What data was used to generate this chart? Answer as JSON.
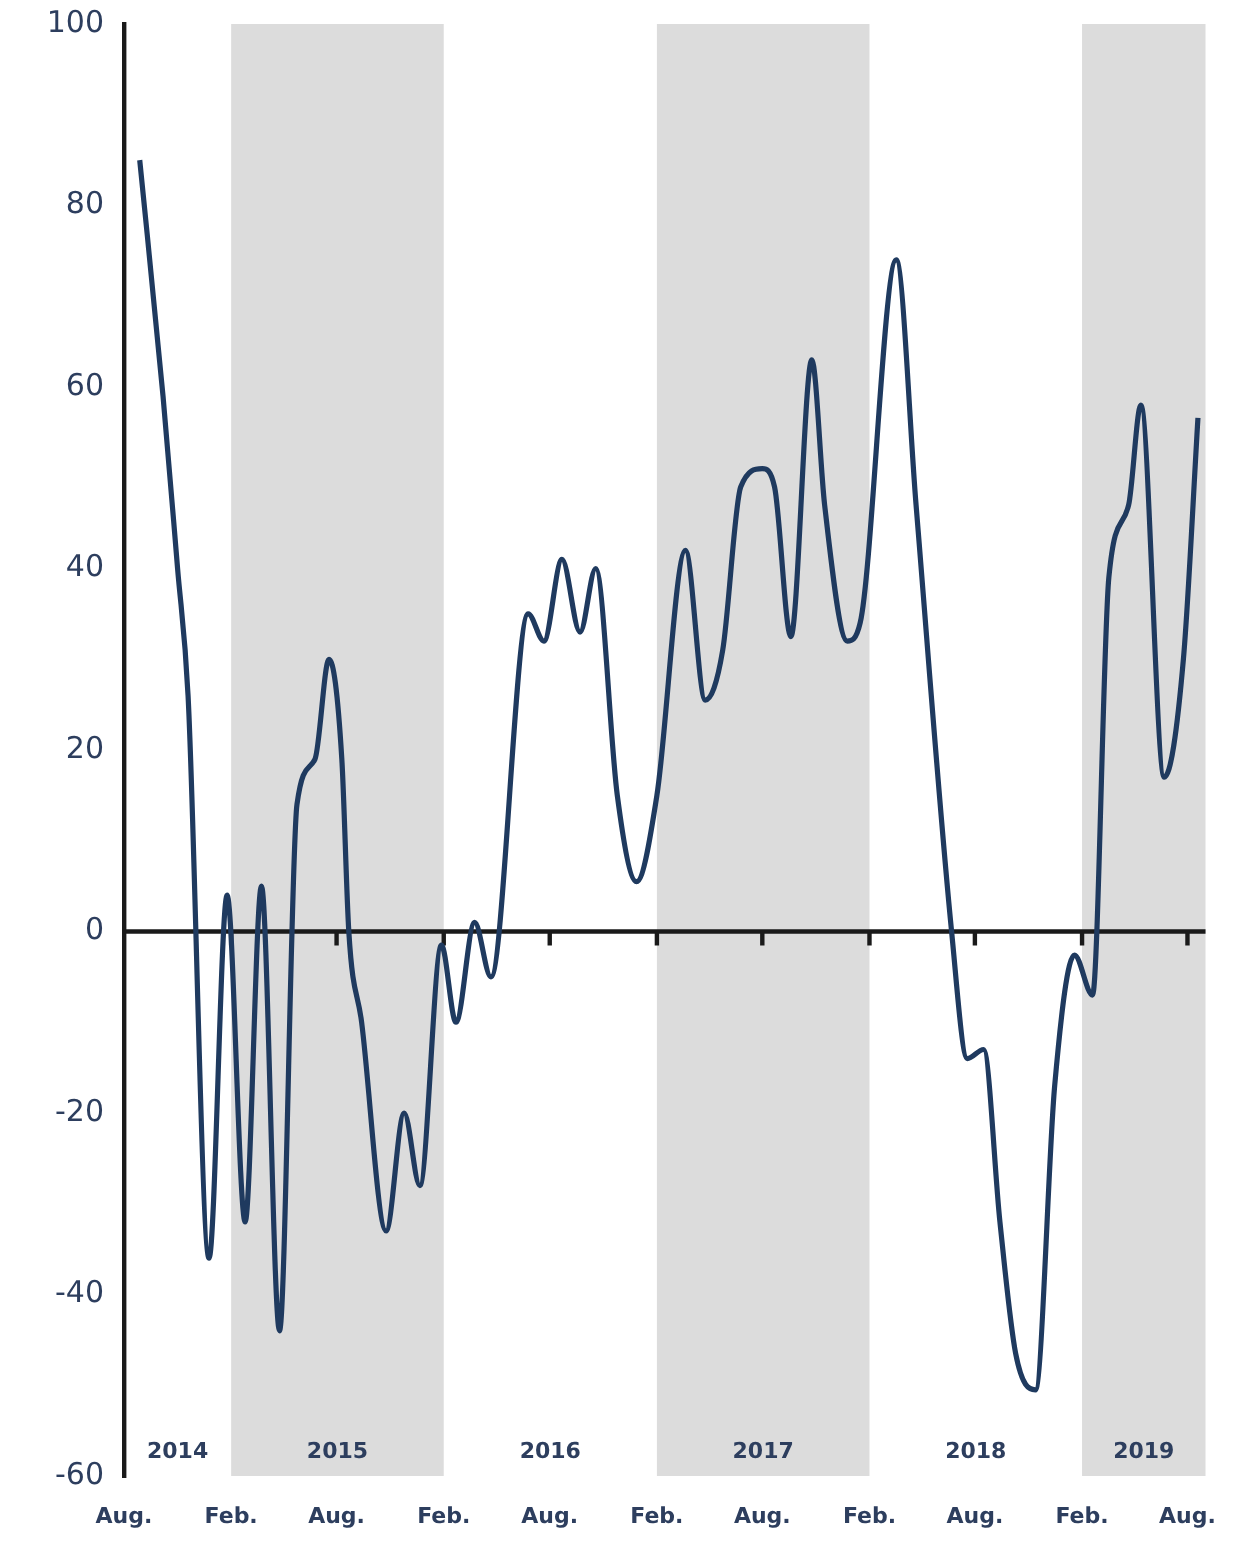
{
  "chart_data": {
    "type": "line",
    "x": [
      "2014-08-28",
      "2014-10-07",
      "2014-11-01",
      "2014-11-19",
      "2014-12-25",
      "2015-01-25",
      "2015-02-25",
      "2015-03-25",
      "2015-04-25",
      "2015-05-25",
      "2015-06-25",
      "2015-07-19",
      "2015-08-10",
      "2015-08-22",
      "2015-09-13",
      "2015-10-25",
      "2015-11-25",
      "2015-12-22",
      "2016-01-28",
      "2016-02-22",
      "2016-03-25",
      "2016-04-22",
      "2016-06-25",
      "2016-07-22",
      "2016-08-22",
      "2016-09-22",
      "2016-10-19",
      "2016-11-25",
      "2016-12-28",
      "2017-02-01",
      "2017-03-22",
      "2017-04-25",
      "2017-05-25",
      "2017-06-25",
      "2017-08-01",
      "2017-08-22",
      "2017-09-19",
      "2017-10-25",
      "2017-11-16",
      "2017-12-25",
      "2018-01-16",
      "2018-03-19",
      "2018-04-22",
      "2018-06-22",
      "2018-07-19",
      "2018-08-16",
      "2018-09-13",
      "2018-10-10",
      "2018-11-13",
      "2018-12-16",
      "2019-01-19",
      "2019-02-19",
      "2019-03-19",
      "2019-04-22",
      "2019-05-13",
      "2019-06-22",
      "2019-07-25",
      "2019-08-19"
    ],
    "series": [
      {
        "color": "#1f3a5f",
        "values": [
          85,
          59,
          40,
          26,
          -36,
          4,
          -32,
          5,
          -44,
          14,
          19,
          30,
          19,
          0,
          -10,
          -33,
          -20,
          -28,
          -1.5,
          -10,
          1,
          -5,
          35,
          32,
          41,
          33,
          40,
          15,
          5.5,
          15,
          42,
          25.5,
          31,
          49,
          51,
          49,
          32.5,
          63,
          47,
          32,
          34,
          74,
          47,
          0,
          -14,
          -13,
          -32,
          -46.5,
          -50.5,
          -17,
          -2.6,
          -7,
          39,
          47,
          58,
          17,
          30,
          56.6
        ]
      }
    ],
    "xlim": [
      "2014-08",
      "2019-09"
    ],
    "xticks": [
      {
        "value": "2014-08",
        "label": "Aug."
      },
      {
        "value": "2015-02",
        "label": "Feb."
      },
      {
        "value": "2015-08",
        "label": "Aug."
      },
      {
        "value": "2016-02",
        "label": "Feb."
      },
      {
        "value": "2016-08",
        "label": "Aug."
      },
      {
        "value": "2017-02",
        "label": "Feb."
      },
      {
        "value": "2017-08",
        "label": "Aug."
      },
      {
        "value": "2018-02",
        "label": "Feb."
      },
      {
        "value": "2018-08",
        "label": "Aug."
      },
      {
        "value": "2019-02",
        "label": "Feb."
      },
      {
        "value": "2019-08",
        "label": "Aug."
      }
    ],
    "ylim": [
      -60,
      100
    ],
    "yticks": [
      -60,
      -40,
      -20,
      0,
      20,
      40,
      60,
      80,
      100
    ],
    "bands": [
      {
        "axis": "x",
        "from": "2015-02",
        "to": "2016-02",
        "color": "#dcdcdc"
      },
      {
        "axis": "x",
        "from": "2017-02",
        "to": "2018-02",
        "color": "#dcdcdc"
      },
      {
        "axis": "x",
        "from": "2019-02",
        "to": "2019-09",
        "color": "#dcdcdc"
      }
    ],
    "ref_lines": [
      {
        "axis": "y",
        "value": 0,
        "color": "#1a1a1a"
      }
    ],
    "annotations": [
      "2014",
      "2015",
      "2016",
      "2017",
      "2018",
      "2019"
    ],
    "grid": false,
    "legend": false,
    "marker": "none",
    "line_style": "solid"
  }
}
